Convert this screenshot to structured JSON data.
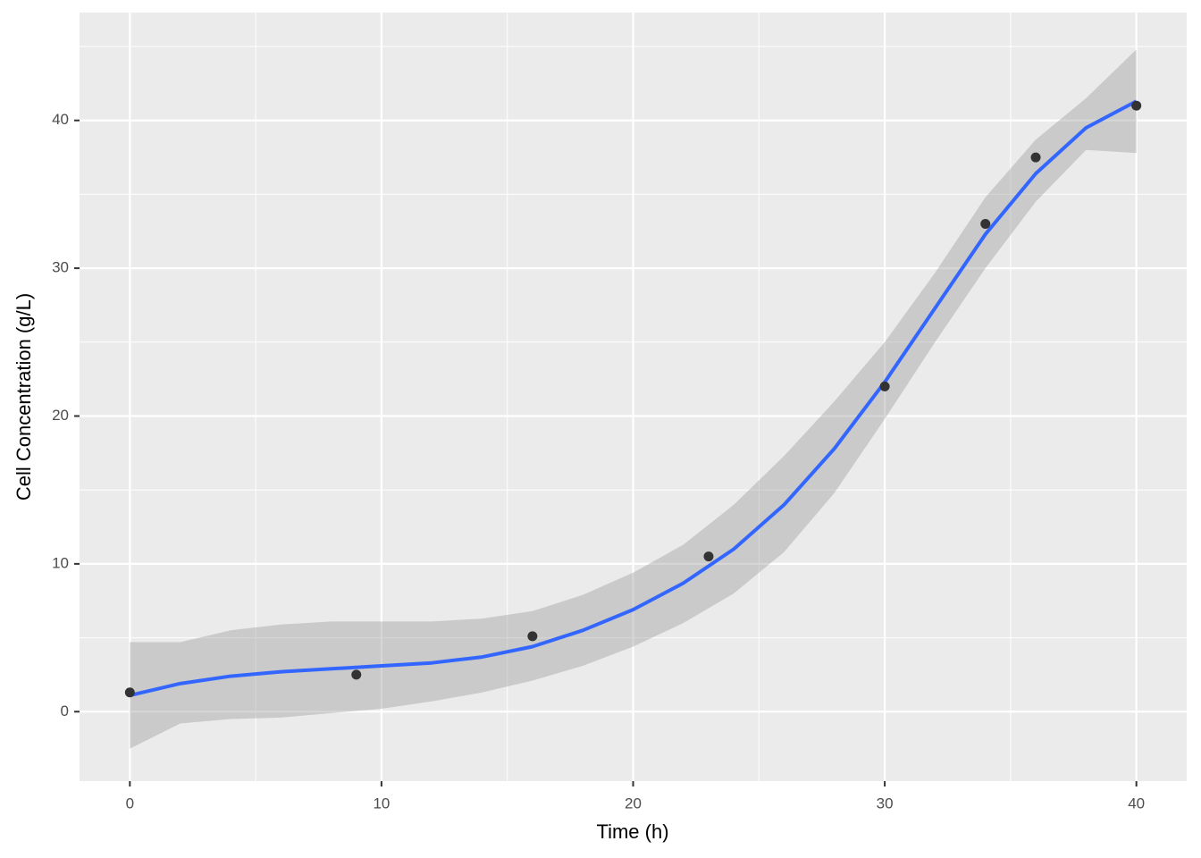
{
  "chart_data": {
    "type": "scatter",
    "x_label": "Time (h)",
    "y_label": "Cell Concentration (g/L)",
    "x": [
      0,
      9,
      16,
      23,
      30,
      34,
      36,
      40
    ],
    "values": [
      1.3,
      2.5,
      5.1,
      10.5,
      22,
      33,
      37.5,
      41
    ],
    "color": "#333333",
    "smooth": {
      "color": "#3366ff",
      "band_color": "#999999",
      "x": [
        0,
        2,
        4,
        6,
        8,
        10,
        12,
        14,
        16,
        18,
        20,
        22,
        24,
        26,
        28,
        30,
        32,
        34,
        36,
        38,
        40
      ],
      "values": [
        1.1,
        1.9,
        2.4,
        2.7,
        2.9,
        3.1,
        3.3,
        3.7,
        4.4,
        5.5,
        6.9,
        8.7,
        11.0,
        14.0,
        17.8,
        22.3,
        27.3,
        32.3,
        36.4,
        39.5,
        41.3
      ],
      "lower": [
        -2.5,
        -0.8,
        -0.5,
        -0.4,
        -0.1,
        0.2,
        0.7,
        1.3,
        2.1,
        3.1,
        4.4,
        6.0,
        8.0,
        10.8,
        14.8,
        19.8,
        25.0,
        30.0,
        34.5,
        38.0,
        37.8
      ],
      "upper": [
        4.7,
        4.7,
        5.5,
        5.9,
        6.1,
        6.1,
        6.1,
        6.3,
        6.8,
        7.9,
        9.4,
        11.3,
        14.0,
        17.3,
        21.0,
        25.0,
        29.7,
        34.8,
        38.7,
        41.5,
        44.8
      ]
    },
    "xlim": [
      -2,
      42
    ],
    "ylim": [
      -4.7,
      47.3
    ],
    "xticks": [
      0,
      10,
      20,
      30,
      40
    ],
    "yticks": [
      0,
      10,
      20,
      30,
      40
    ],
    "xminor": [
      5,
      15,
      25,
      35
    ],
    "yminor": [
      5,
      15,
      25,
      35,
      45
    ],
    "grid": true
  }
}
